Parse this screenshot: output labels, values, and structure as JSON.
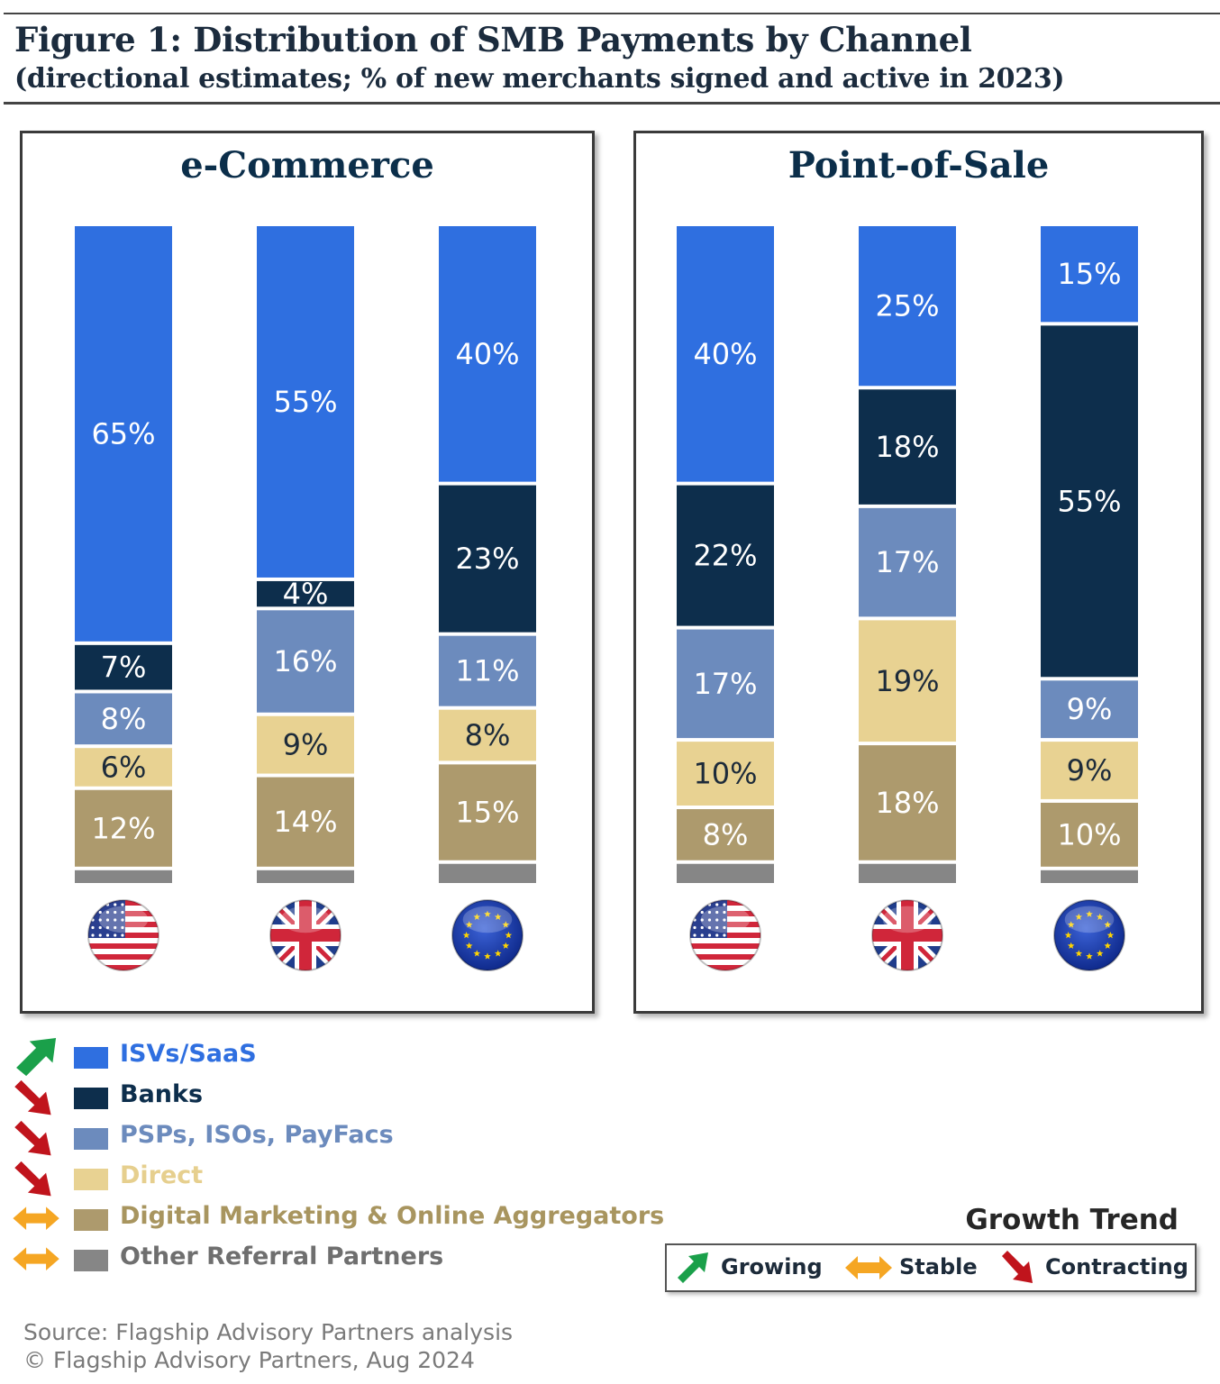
{
  "header": {
    "title": "Figure 1: Distribution of SMB Payments by Channel",
    "subtitle": "(directional estimates; % of new merchants signed and active in 2023)"
  },
  "colors": {
    "isv": "#2f6fe0",
    "banks": "#0d2e4c",
    "psp": "#6c8bbd",
    "direct": "#e8d292",
    "digital": "#ad9a6d",
    "other": "#868686",
    "growing": "#1aa04a",
    "stable": "#f5a623",
    "contracting": "#c0141c"
  },
  "chart_data": [
    {
      "type": "bar",
      "stacked": true,
      "title": "e-Commerce",
      "categories": [
        "US",
        "UK",
        "EU"
      ],
      "category_icons": [
        "us-flag-icon",
        "uk-flag-icon",
        "eu-flag-icon"
      ],
      "series": [
        {
          "name": "ISVs/SaaS",
          "values": [
            65,
            55,
            40
          ]
        },
        {
          "name": "Banks",
          "values": [
            7,
            4,
            23
          ]
        },
        {
          "name": "PSPs, ISOs, PayFacs",
          "values": [
            8,
            16,
            11
          ]
        },
        {
          "name": "Direct",
          "values": [
            6,
            9,
            8
          ]
        },
        {
          "name": "Digital Marketing & Online Aggregators",
          "values": [
            12,
            14,
            15
          ]
        },
        {
          "name": "Other Referral Partners",
          "values": [
            2,
            2,
            3
          ]
        }
      ],
      "data_labels": [
        [
          "65%",
          "55%",
          "40%"
        ],
        [
          "7%",
          "4%",
          "23%"
        ],
        [
          "8%",
          "16%",
          "11%"
        ],
        [
          "6%",
          "9%",
          "8%"
        ],
        [
          "12%",
          "14%",
          "15%"
        ],
        [
          "",
          "",
          ""
        ]
      ]
    },
    {
      "type": "bar",
      "stacked": true,
      "title": "Point-of-Sale",
      "categories": [
        "US",
        "UK",
        "EU"
      ],
      "category_icons": [
        "us-flag-icon",
        "uk-flag-icon",
        "eu-flag-icon"
      ],
      "series": [
        {
          "name": "ISVs/SaaS",
          "values": [
            40,
            25,
            15
          ]
        },
        {
          "name": "Banks",
          "values": [
            22,
            18,
            55
          ]
        },
        {
          "name": "PSPs, ISOs, PayFacs",
          "values": [
            17,
            17,
            9
          ]
        },
        {
          "name": "Direct",
          "values": [
            10,
            19,
            9
          ]
        },
        {
          "name": "Digital Marketing & Online Aggregators",
          "values": [
            8,
            18,
            10
          ]
        },
        {
          "name": "Other Referral Partners",
          "values": [
            3,
            3,
            2
          ]
        }
      ],
      "data_labels": [
        [
          "40%",
          "25%",
          "15%"
        ],
        [
          "22%",
          "18%",
          "55%"
        ],
        [
          "17%",
          "17%",
          "9%"
        ],
        [
          "10%",
          "19%",
          "9%"
        ],
        [
          "8%",
          "18%",
          "10%"
        ],
        [
          "",
          "",
          ""
        ]
      ]
    }
  ],
  "legend": [
    {
      "label": "ISVs/SaaS",
      "trend": "growing",
      "color_key": "isv"
    },
    {
      "label": "Banks",
      "trend": "contracting",
      "color_key": "banks"
    },
    {
      "label": "PSPs, ISOs, PayFacs",
      "trend": "contracting",
      "color_key": "psp"
    },
    {
      "label": "Direct",
      "trend": "contracting",
      "color_key": "direct"
    },
    {
      "label": "Digital Marketing & Online Aggregators",
      "trend": "stable",
      "color_key": "digital"
    },
    {
      "label": "Other Referral Partners",
      "trend": "stable",
      "color_key": "other"
    }
  ],
  "growth_trend": {
    "title": "Growth Trend",
    "items": [
      {
        "label": "Growing",
        "icon": "growing-arrow-icon"
      },
      {
        "label": "Stable",
        "icon": "stable-arrow-icon"
      },
      {
        "label": "Contracting",
        "icon": "contracting-arrow-icon"
      }
    ]
  },
  "footer": {
    "source": "Source: Flagship Advisory Partners analysis",
    "copyright": "© Flagship Advisory Partners, Aug 2024"
  }
}
